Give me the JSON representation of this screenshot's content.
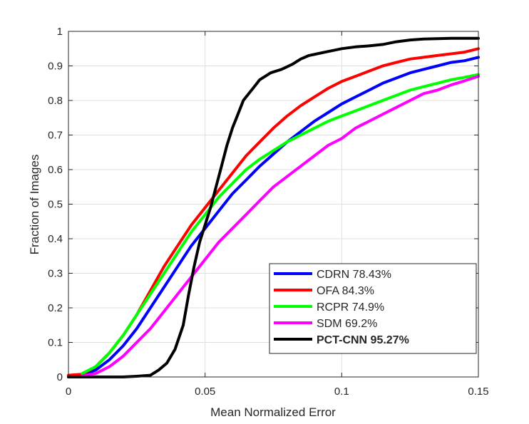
{
  "chart_data": {
    "type": "line",
    "xlabel": "Mean Normalized Error",
    "ylabel": "Fraction of Images",
    "xlim": [
      0,
      0.15
    ],
    "ylim": [
      0,
      1
    ],
    "xticks": [
      0,
      0.05,
      0.1,
      0.15
    ],
    "xtick_labels": [
      "0",
      "0.05",
      "0.1",
      "0.15"
    ],
    "yticks": [
      0,
      0.1,
      0.2,
      0.3,
      0.4,
      0.5,
      0.6,
      0.7,
      0.8,
      0.9,
      1
    ],
    "ytick_labels": [
      "0",
      "0.1",
      "0.2",
      "0.3",
      "0.4",
      "0.5",
      "0.6",
      "0.7",
      "0.8",
      "0.9",
      "1"
    ],
    "grid": true,
    "legend_position": "bottom-right",
    "series": [
      {
        "name": "CDRN 78.43%",
        "color": "#0000ff",
        "bold": false,
        "x": [
          0,
          0.005,
          0.01,
          0.015,
          0.02,
          0.025,
          0.03,
          0.035,
          0.04,
          0.045,
          0.05,
          0.055,
          0.06,
          0.065,
          0.07,
          0.075,
          0.08,
          0.085,
          0.09,
          0.095,
          0.1,
          0.105,
          0.11,
          0.115,
          0.12,
          0.125,
          0.13,
          0.135,
          0.14,
          0.145,
          0.15
        ],
        "y": [
          0,
          0.005,
          0.02,
          0.05,
          0.09,
          0.14,
          0.2,
          0.26,
          0.32,
          0.38,
          0.43,
          0.48,
          0.53,
          0.57,
          0.61,
          0.645,
          0.68,
          0.71,
          0.74,
          0.765,
          0.79,
          0.81,
          0.83,
          0.85,
          0.865,
          0.88,
          0.89,
          0.9,
          0.91,
          0.915,
          0.925
        ]
      },
      {
        "name": "OFA 84.3%",
        "color": "#ff0000",
        "bold": false,
        "x": [
          0,
          0.005,
          0.01,
          0.015,
          0.02,
          0.025,
          0.03,
          0.035,
          0.04,
          0.045,
          0.05,
          0.055,
          0.06,
          0.065,
          0.07,
          0.075,
          0.08,
          0.085,
          0.09,
          0.095,
          0.1,
          0.105,
          0.11,
          0.115,
          0.12,
          0.125,
          0.13,
          0.135,
          0.14,
          0.145,
          0.15
        ],
        "y": [
          0.005,
          0.008,
          0.03,
          0.07,
          0.12,
          0.18,
          0.25,
          0.32,
          0.38,
          0.44,
          0.49,
          0.54,
          0.59,
          0.64,
          0.68,
          0.72,
          0.755,
          0.785,
          0.81,
          0.835,
          0.855,
          0.87,
          0.885,
          0.9,
          0.91,
          0.92,
          0.925,
          0.93,
          0.935,
          0.94,
          0.95
        ]
      },
      {
        "name": "RCPR 74.9%",
        "color": "#00ff00",
        "bold": false,
        "x": [
          0.005,
          0.01,
          0.015,
          0.02,
          0.025,
          0.03,
          0.035,
          0.04,
          0.045,
          0.05,
          0.055,
          0.06,
          0.065,
          0.07,
          0.075,
          0.08,
          0.085,
          0.09,
          0.095,
          0.1,
          0.105,
          0.11,
          0.115,
          0.12,
          0.125,
          0.13,
          0.135,
          0.14,
          0.145,
          0.15
        ],
        "y": [
          0.01,
          0.03,
          0.07,
          0.12,
          0.18,
          0.24,
          0.3,
          0.36,
          0.42,
          0.47,
          0.52,
          0.56,
          0.6,
          0.63,
          0.655,
          0.68,
          0.7,
          0.72,
          0.74,
          0.755,
          0.77,
          0.785,
          0.8,
          0.815,
          0.83,
          0.84,
          0.85,
          0.86,
          0.867,
          0.875
        ]
      },
      {
        "name": "SDM 69.2%",
        "color": "#ff00ff",
        "bold": false,
        "x": [
          0.005,
          0.01,
          0.015,
          0.02,
          0.025,
          0.03,
          0.035,
          0.04,
          0.045,
          0.05,
          0.055,
          0.06,
          0.065,
          0.07,
          0.075,
          0.08,
          0.085,
          0.09,
          0.095,
          0.1,
          0.105,
          0.11,
          0.115,
          0.12,
          0.125,
          0.13,
          0.135,
          0.14,
          0.145,
          0.15
        ],
        "y": [
          0.003,
          0.01,
          0.03,
          0.06,
          0.1,
          0.14,
          0.19,
          0.24,
          0.29,
          0.34,
          0.39,
          0.43,
          0.47,
          0.51,
          0.55,
          0.58,
          0.61,
          0.64,
          0.67,
          0.69,
          0.72,
          0.74,
          0.76,
          0.78,
          0.8,
          0.82,
          0.83,
          0.845,
          0.857,
          0.87
        ]
      },
      {
        "name": "PCT-CNN 95.27%",
        "color": "#000000",
        "bold": true,
        "x": [
          0,
          0.01,
          0.02,
          0.025,
          0.03,
          0.033,
          0.036,
          0.039,
          0.042,
          0.044,
          0.046,
          0.048,
          0.05,
          0.052,
          0.054,
          0.056,
          0.058,
          0.06,
          0.062,
          0.064,
          0.066,
          0.068,
          0.07,
          0.074,
          0.078,
          0.082,
          0.085,
          0.088,
          0.091,
          0.094,
          0.097,
          0.1,
          0.105,
          0.11,
          0.115,
          0.12,
          0.125,
          0.13,
          0.14,
          0.15
        ],
        "y": [
          0,
          0,
          0,
          0.002,
          0.005,
          0.02,
          0.04,
          0.08,
          0.15,
          0.24,
          0.32,
          0.39,
          0.44,
          0.49,
          0.55,
          0.61,
          0.67,
          0.72,
          0.76,
          0.8,
          0.82,
          0.84,
          0.86,
          0.88,
          0.89,
          0.905,
          0.92,
          0.93,
          0.935,
          0.94,
          0.945,
          0.95,
          0.955,
          0.958,
          0.962,
          0.97,
          0.975,
          0.978,
          0.98,
          0.98
        ]
      }
    ]
  }
}
